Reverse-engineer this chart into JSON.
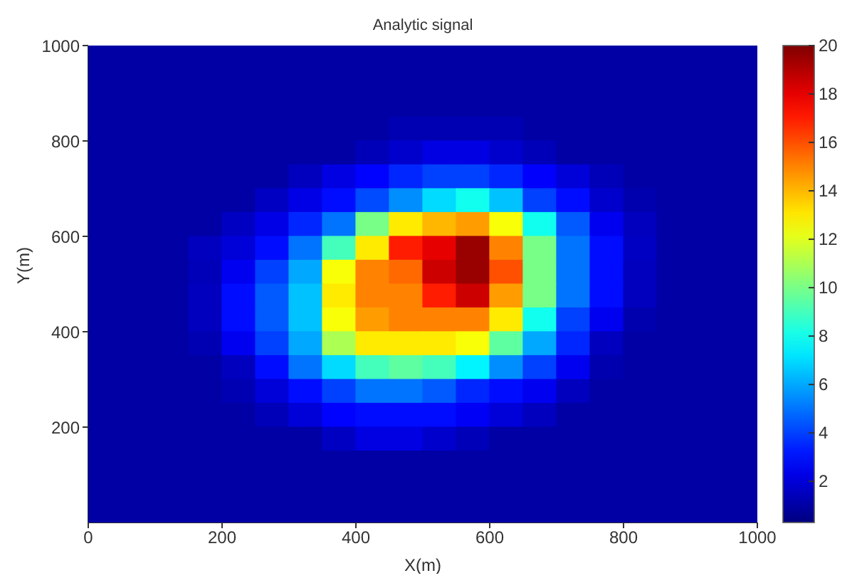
{
  "chart_data": {
    "type": "heatmap",
    "title": "Analytic signal",
    "xlabel": "X(m)",
    "ylabel": "Y(m)",
    "xlim": [
      0,
      1000
    ],
    "xticks": [
      0,
      200,
      400,
      600,
      800,
      1000
    ],
    "ylim": [
      0,
      1000
    ],
    "yticks": [
      200,
      400,
      600,
      800,
      1000
    ],
    "clim": [
      0.3,
      20
    ],
    "cticks": [
      2,
      4,
      6,
      8,
      10,
      12,
      14,
      16,
      18,
      20
    ],
    "grid": false,
    "cells": [
      [
        1,
        1,
        1,
        1,
        1,
        1,
        1,
        1,
        1,
        1,
        1,
        1,
        1,
        1,
        1,
        1,
        1,
        1,
        1,
        1
      ],
      [
        1,
        1,
        1,
        1,
        1,
        1,
        1,
        1,
        1,
        1,
        1,
        1,
        1,
        1,
        1,
        1,
        1,
        1,
        1,
        1
      ],
      [
        1,
        1,
        1,
        1,
        1,
        1,
        1,
        1,
        1,
        1,
        1,
        1,
        1,
        1,
        1,
        1,
        1,
        1,
        1,
        1
      ],
      [
        1,
        1,
        1,
        1,
        1,
        1,
        1,
        1,
        1,
        1.3,
        1.3,
        1.3,
        1.3,
        1,
        1,
        1,
        1,
        1,
        1,
        1
      ],
      [
        1,
        1,
        1,
        1,
        1,
        1,
        1,
        1,
        1.4,
        1.8,
        2.2,
        2.2,
        1.8,
        1.4,
        1,
        1,
        1,
        1,
        1,
        1
      ],
      [
        1,
        1,
        1,
        1,
        1,
        1,
        1.5,
        2.2,
        2.8,
        3.5,
        4,
        4,
        3.5,
        2.7,
        2,
        1.4,
        1,
        1,
        1,
        1
      ],
      [
        1,
        1,
        1,
        1,
        1,
        1.6,
        2.3,
        3,
        4.2,
        5.5,
        7,
        8,
        6.5,
        4,
        3,
        1.8,
        1.2,
        1,
        1,
        1
      ],
      [
        1,
        1,
        1,
        1,
        1.6,
        2.3,
        3.5,
        5,
        10,
        13,
        14,
        14.5,
        12.5,
        8,
        4.5,
        2.5,
        1.5,
        1,
        1,
        1
      ],
      [
        1,
        1,
        1,
        1.5,
        2,
        3,
        5,
        9,
        13,
        17,
        18,
        19.5,
        15,
        10,
        5,
        3,
        1.6,
        1,
        1,
        1
      ],
      [
        1,
        1,
        1,
        1.4,
        2.5,
        4,
        6,
        12.5,
        15,
        15.5,
        18.5,
        19.5,
        16,
        10,
        5,
        3,
        1.5,
        1,
        1,
        1
      ],
      [
        1,
        1,
        1,
        1.5,
        3,
        4.5,
        6.5,
        13,
        15,
        15,
        17,
        18.5,
        14.5,
        10,
        5,
        3,
        1.5,
        1,
        1,
        1
      ],
      [
        1,
        1,
        1,
        1.5,
        3,
        4.5,
        6.5,
        12.5,
        14.5,
        15,
        15,
        15,
        13,
        8,
        4,
        2.5,
        1.2,
        1,
        1,
        1
      ],
      [
        1,
        1,
        1,
        1.3,
        2.5,
        4,
        6,
        11,
        13,
        13,
        13,
        12.5,
        9.5,
        6,
        3.5,
        1.5,
        1,
        1,
        1,
        1
      ],
      [
        1,
        1,
        1,
        1,
        1.5,
        3,
        5,
        7,
        9,
        9.5,
        9,
        7.5,
        5.5,
        4,
        2.5,
        1.2,
        1,
        1,
        1,
        1
      ],
      [
        1,
        1,
        1,
        1,
        1.3,
        2,
        3,
        4,
        5,
        5,
        4.5,
        3.5,
        3,
        2.5,
        1.5,
        1,
        1,
        1,
        1,
        1
      ],
      [
        1,
        1,
        1,
        1,
        1,
        1.4,
        2,
        2.8,
        3,
        3,
        3,
        2.6,
        2,
        1.5,
        1,
        1,
        1,
        1,
        1,
        1
      ],
      [
        1,
        1,
        1,
        1,
        1,
        1,
        1,
        1.6,
        2.2,
        2.2,
        1.8,
        1.4,
        1,
        1,
        1,
        1,
        1,
        1,
        1,
        1
      ],
      [
        1,
        1,
        1,
        1,
        1,
        1,
        1,
        1,
        1,
        1,
        1,
        1,
        1,
        1,
        1,
        1,
        1,
        1,
        1,
        1
      ],
      [
        1,
        1,
        1,
        1,
        1,
        1,
        1,
        1,
        1,
        1,
        1,
        1,
        1,
        1,
        1,
        1,
        1,
        1,
        1,
        1
      ],
      [
        1,
        1,
        1,
        1,
        1,
        1,
        1,
        1,
        1,
        1,
        1,
        1,
        1,
        1,
        1,
        1,
        1,
        1,
        1,
        1
      ]
    ]
  }
}
